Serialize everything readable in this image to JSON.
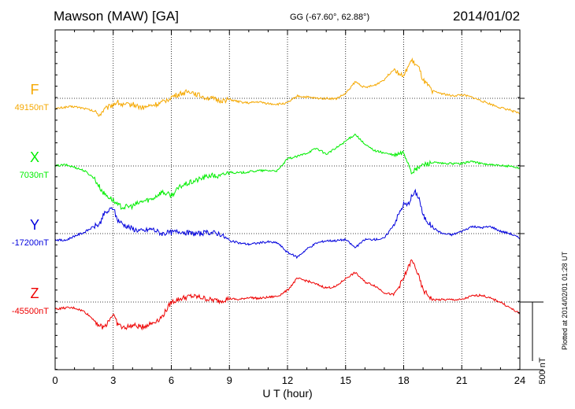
{
  "header": {
    "station": "Mawson (MAW)  [GA]",
    "coords": "GG (-67.60°,  62.88°)",
    "date": "2014/01/02"
  },
  "footer": {
    "plotted": "Plotted at 2014/02/01 01:28 UT"
  },
  "chart_data": {
    "type": "line",
    "title": "Mawson (MAW)  [GA]",
    "xlabel": "U T (hour)",
    "xlim": [
      0,
      24
    ],
    "xticks": [
      0,
      3,
      6,
      9,
      12,
      15,
      18,
      21,
      24
    ],
    "x_tick_labels": [
      "0",
      "3",
      "6",
      "9",
      "12",
      "15",
      "18",
      "21",
      "24"
    ],
    "grid": true,
    "scale_label": "500 nT",
    "scale_nT": 500,
    "x": [
      0,
      0.5,
      1,
      1.5,
      2,
      2.3,
      2.5,
      3,
      3.2,
      3.5,
      4,
      4.5,
      5,
      5.5,
      6,
      6.5,
      7,
      7.5,
      8,
      8.5,
      9,
      9.5,
      10,
      10.5,
      11,
      11.5,
      12,
      12.5,
      13,
      13.5,
      14,
      14.5,
      15,
      15.5,
      16,
      16.5,
      17,
      17.5,
      18,
      18.2,
      18.4,
      18.6,
      18.8,
      19,
      19.5,
      20,
      20.5,
      21,
      21.5,
      22,
      22.5,
      23,
      23.5,
      24
    ],
    "series": [
      {
        "name": "F",
        "baseline_label": "49150nT",
        "color": "#f5a800",
        "values": [
          -90,
          -75,
          -70,
          -85,
          -110,
          -140,
          -100,
          -50,
          -30,
          -60,
          -50,
          -80,
          -60,
          -40,
          10,
          40,
          60,
          20,
          0,
          -20,
          -10,
          -30,
          -40,
          -30,
          -45,
          -50,
          -40,
          20,
          10,
          0,
          0,
          -5,
          40,
          140,
          90,
          110,
          160,
          250,
          180,
          260,
          320,
          290,
          250,
          150,
          60,
          40,
          20,
          30,
          10,
          -20,
          -50,
          -80,
          -100,
          -130
        ]
      },
      {
        "name": "X",
        "baseline_label": "7030nT",
        "color": "#00ee00",
        "values": [
          0,
          10,
          -10,
          -40,
          -100,
          -180,
          -230,
          -290,
          -330,
          -350,
          -340,
          -300,
          -280,
          -220,
          -250,
          -170,
          -140,
          -110,
          -80,
          -90,
          -50,
          -60,
          -50,
          -40,
          -40,
          -40,
          60,
          80,
          110,
          150,
          100,
          150,
          210,
          270,
          180,
          130,
          110,
          90,
          110,
          40,
          -50,
          -40,
          -10,
          10,
          30,
          20,
          20,
          20,
          40,
          20,
          10,
          0,
          0,
          -20
        ]
      },
      {
        "name": "Y",
        "baseline_label": "-17200nT",
        "color": "#0000dd",
        "values": [
          -50,
          -60,
          -20,
          10,
          60,
          80,
          160,
          220,
          120,
          80,
          40,
          20,
          40,
          0,
          10,
          20,
          0,
          0,
          10,
          0,
          -60,
          -80,
          -90,
          -80,
          -70,
          -80,
          -160,
          -200,
          -130,
          -80,
          -60,
          -60,
          -50,
          -120,
          -50,
          -50,
          -40,
          80,
          250,
          240,
          310,
          350,
          300,
          150,
          50,
          0,
          -10,
          20,
          60,
          50,
          60,
          20,
          0,
          -40
        ]
      },
      {
        "name": "Z",
        "baseline_label": "-45500nT",
        "color": "#ee0000",
        "values": [
          -60,
          -50,
          -50,
          -80,
          -150,
          -200,
          -220,
          -100,
          -180,
          -220,
          -200,
          -210,
          -180,
          -130,
          0,
          30,
          50,
          40,
          20,
          10,
          30,
          20,
          40,
          30,
          40,
          50,
          100,
          200,
          180,
          150,
          120,
          130,
          200,
          250,
          170,
          140,
          80,
          60,
          200,
          280,
          350,
          300,
          200,
          100,
          20,
          20,
          20,
          20,
          50,
          60,
          30,
          0,
          -50,
          -100
        ]
      }
    ]
  }
}
